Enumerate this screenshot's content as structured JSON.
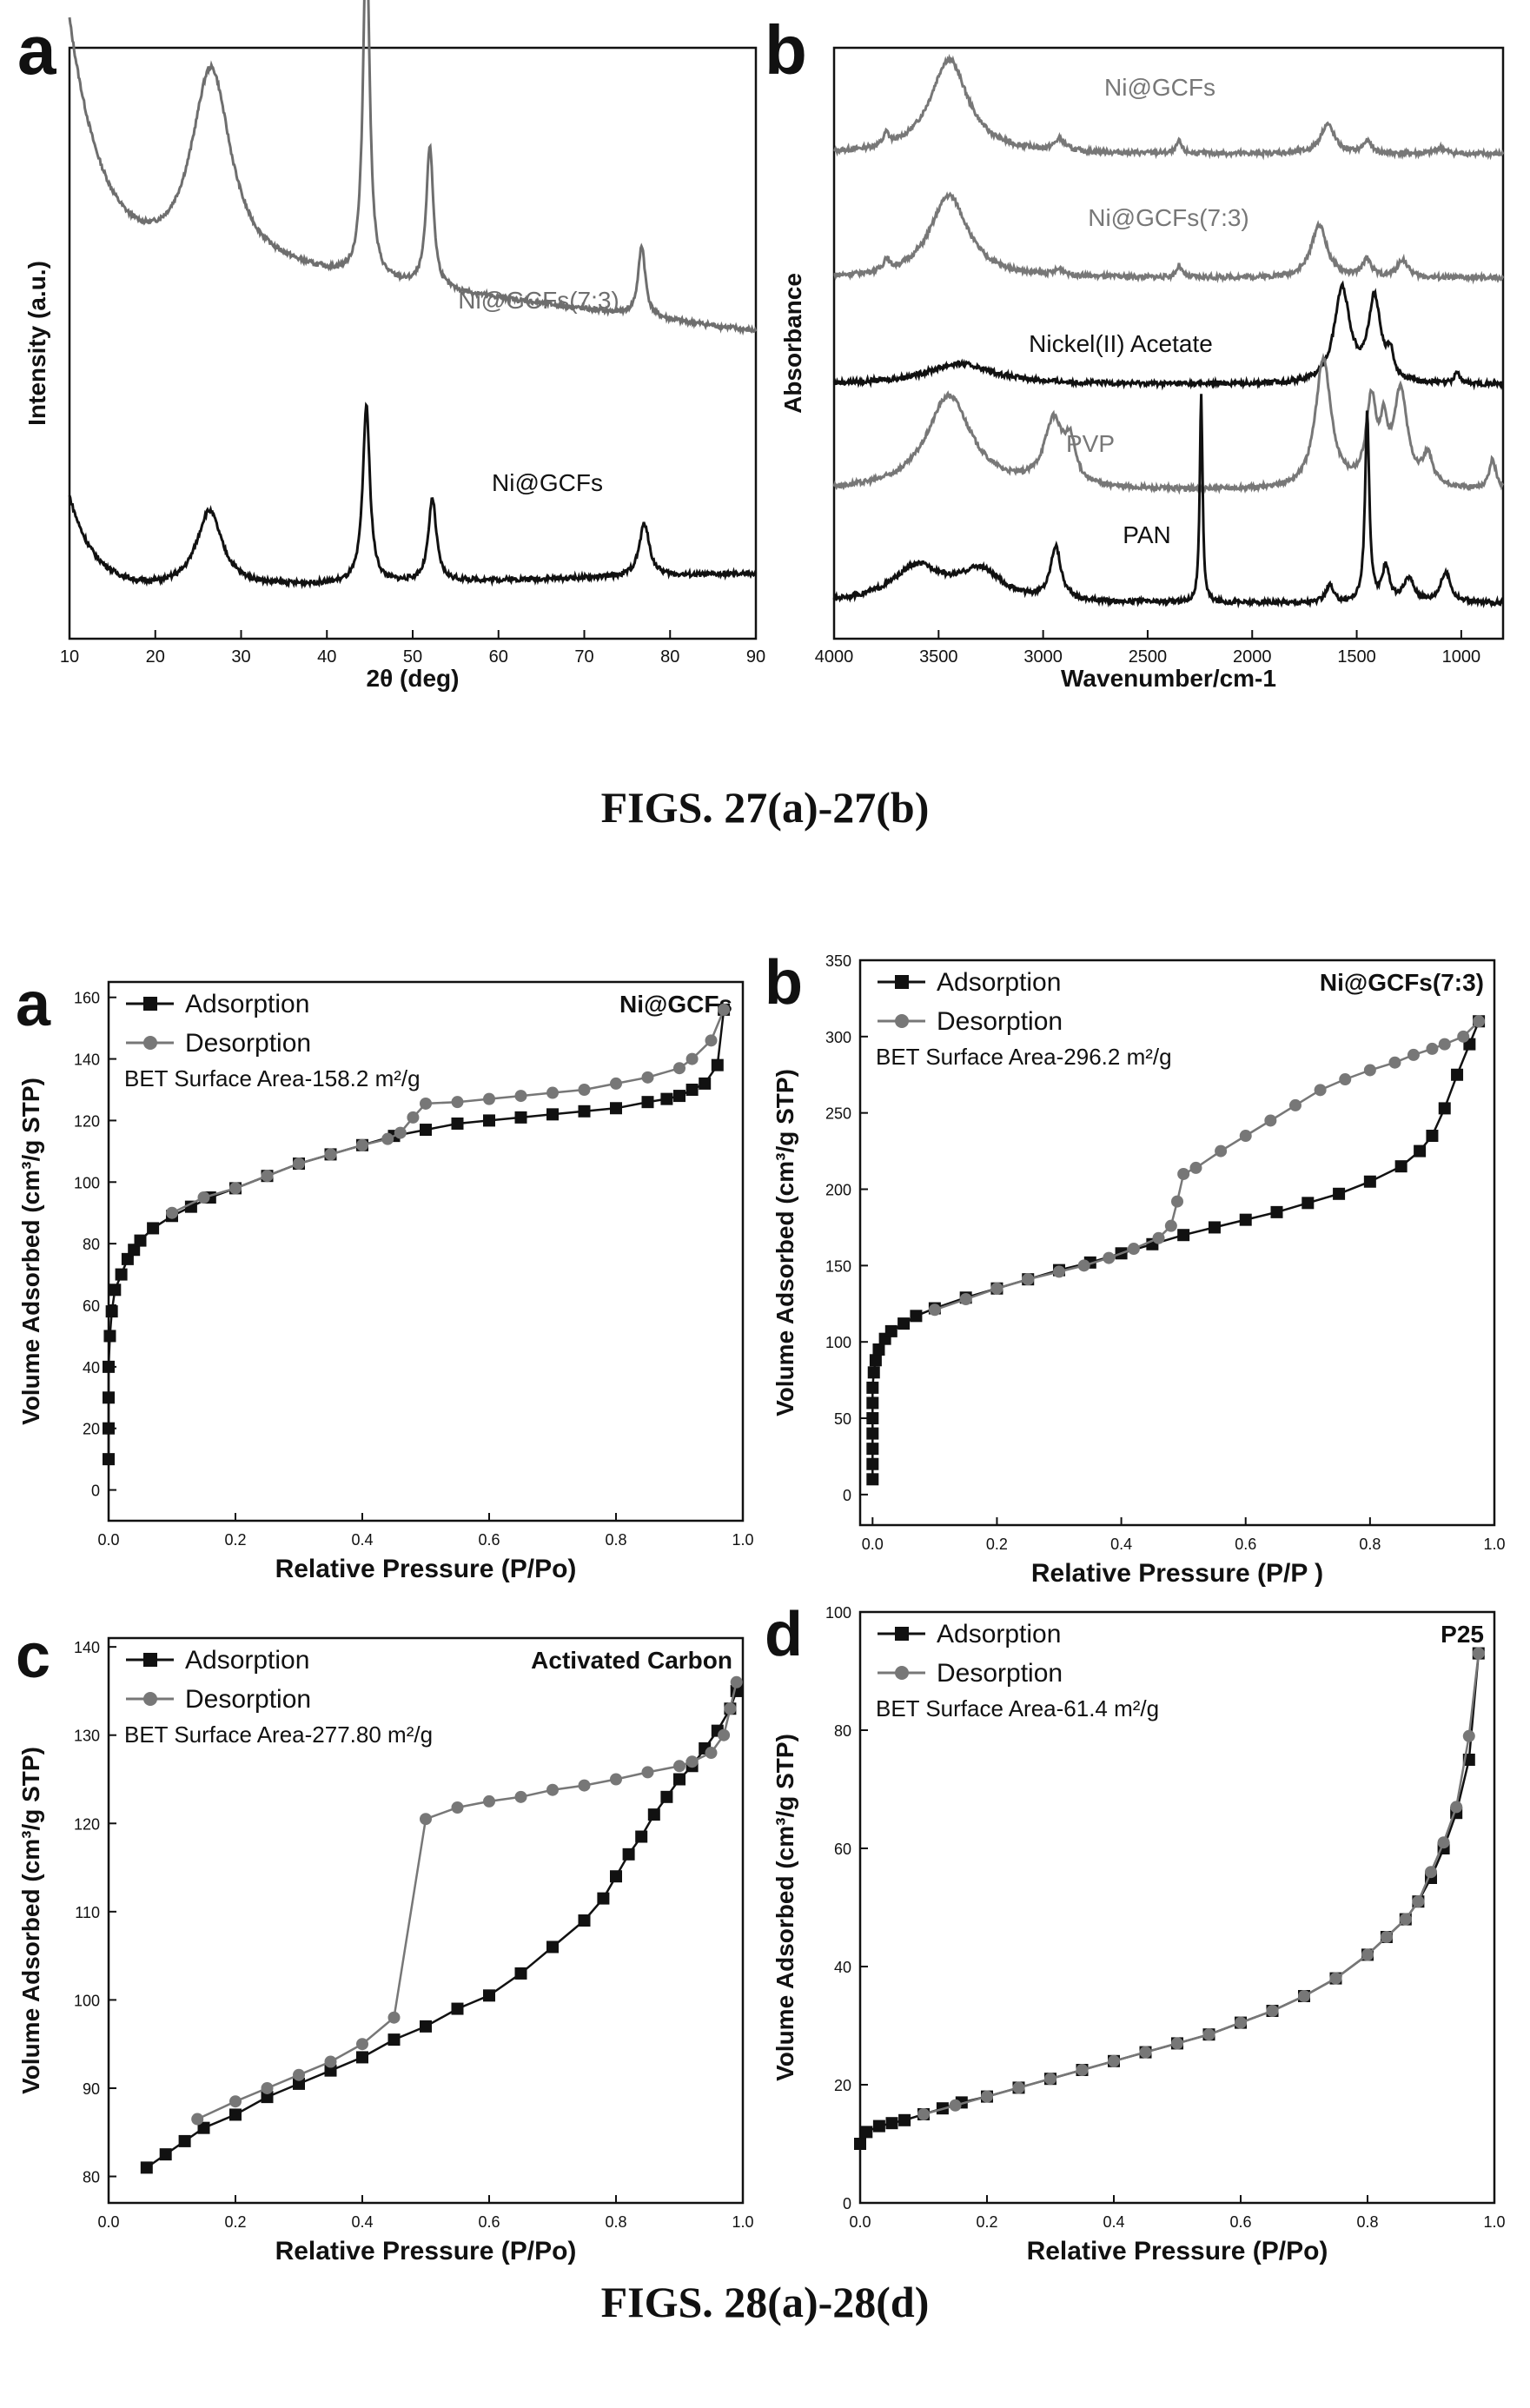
{
  "figure_captions": [
    "FIGS. 27(a)-27(b)",
    "FIGS. 28(a)-28(d)"
  ],
  "chart_data": [
    {
      "id": "fig27a",
      "panel_letter": "a",
      "type": "line",
      "xlabel": "2θ (deg)",
      "ylabel": "Intensity (a.u.)",
      "xlim": [
        10,
        90
      ],
      "xticks": [
        10,
        20,
        30,
        40,
        50,
        60,
        70,
        80,
        90
      ],
      "yticks_visible": false,
      "series": [
        {
          "name": "Ni@GCFs(7:3)",
          "color": "#6e6e6e",
          "offset": 0.52,
          "peaks": [
            [
              10,
              0.42,
              4,
              -1
            ],
            [
              26.5,
              0.34,
              2.8,
              0
            ],
            [
              44.6,
              0.6,
              0.45,
              0
            ],
            [
              52.0,
              0.24,
              0.5,
              0
            ],
            [
              76.7,
              0.12,
              0.5,
              0
            ]
          ],
          "baseline": [
            [
              10,
              0.1
            ],
            [
              35,
              0.1
            ],
            [
              90,
              0.0
            ]
          ]
        },
        {
          "name": "Ni@GCFs",
          "color": "#111111",
          "offset": 0.08,
          "peaks": [
            [
              10,
              0.16,
              3,
              -1
            ],
            [
              26.3,
              0.13,
              1.8,
              0
            ],
            [
              44.6,
              0.3,
              0.5,
              0
            ],
            [
              52.3,
              0.14,
              0.55,
              0
            ],
            [
              77.0,
              0.09,
              0.7,
              0
            ]
          ],
          "baseline": [
            [
              10,
              0.0
            ],
            [
              90,
              0.03
            ]
          ]
        }
      ]
    },
    {
      "id": "fig27b",
      "panel_letter": "b",
      "type": "line",
      "xlabel": "Wavenumber/cm-1",
      "ylabel": "Absorbance",
      "xlim": [
        4000,
        800
      ],
      "xticks": [
        4000,
        3500,
        3000,
        2500,
        2000,
        1500,
        1000
      ],
      "yticks_visible": false,
      "x_reversed": true,
      "series": [
        {
          "name": "Ni@GCFs",
          "color": "#777777",
          "offset": 0.82,
          "peaks": [
            [
              3450,
              0.16,
              110
            ],
            [
              3750,
              0.02,
              15
            ],
            [
              2920,
              0.02,
              30
            ],
            [
              2350,
              0.02,
              15
            ],
            [
              1640,
              0.05,
              40
            ],
            [
              1450,
              0.02,
              25
            ],
            [
              1100,
              0.01,
              30
            ]
          ]
        },
        {
          "name": "Ni@GCFs(7:3)",
          "color": "#777777",
          "offset": 0.61,
          "peaks": [
            [
              3450,
              0.14,
              110
            ],
            [
              3750,
              0.02,
              15
            ],
            [
              2920,
              0.01,
              30
            ],
            [
              2350,
              0.02,
              15
            ],
            [
              1680,
              0.09,
              45
            ],
            [
              1450,
              0.03,
              25
            ],
            [
              1280,
              0.03,
              30
            ]
          ]
        },
        {
          "name": "Nickel(II) Acetate",
          "color": "#111111",
          "offset": 0.43,
          "peaks": [
            [
              3400,
              0.035,
              200
            ],
            [
              1570,
              0.16,
              45
            ],
            [
              1415,
              0.14,
              35
            ],
            [
              1340,
              0.04,
              20
            ],
            [
              1020,
              0.02,
              15
            ]
          ]
        },
        {
          "name": "PVP",
          "color": "#777777",
          "offset": 0.25,
          "peaks": [
            [
              3450,
              0.16,
              130
            ],
            [
              2950,
              0.11,
              55
            ],
            [
              2870,
              0.06,
              30
            ],
            [
              1660,
              0.22,
              45
            ],
            [
              1430,
              0.14,
              30
            ],
            [
              1370,
              0.08,
              20
            ],
            [
              1290,
              0.16,
              40
            ],
            [
              1160,
              0.05,
              30
            ],
            [
              850,
              0.05,
              20
            ]
          ]
        },
        {
          "name": "PAN",
          "color": "#111111",
          "offset": 0.06,
          "peaks": [
            [
              3600,
              0.06,
              150
            ],
            [
              3300,
              0.05,
              120
            ],
            [
              2940,
              0.09,
              30
            ],
            [
              2244,
              0.35,
              8
            ],
            [
              1630,
              0.03,
              20
            ],
            [
              1450,
              0.32,
              12
            ],
            [
              1360,
              0.06,
              20
            ],
            [
              1250,
              0.04,
              30
            ],
            [
              1075,
              0.05,
              30
            ]
          ]
        }
      ]
    },
    {
      "id": "fig28a",
      "panel_letter": "a",
      "type": "line",
      "title": "Ni@GCFs",
      "annotation": "BET Surface Area-158.2 m²/g",
      "xlabel": "Relative Pressure (P/Po)",
      "ylabel": "Volume Adsorbed (cm³/g STP)",
      "xlim": [
        0,
        1.0
      ],
      "ylim": [
        -10,
        165
      ],
      "yticks": [
        0,
        20,
        40,
        60,
        80,
        100,
        120,
        140,
        160
      ],
      "legend_location": "top-left",
      "series": [
        {
          "name": "Adsorption",
          "color": "#111111",
          "marker": "square",
          "x": [
            0.0,
            0.0,
            0.0,
            0.0,
            0.002,
            0.005,
            0.01,
            0.02,
            0.03,
            0.04,
            0.05,
            0.07,
            0.1,
            0.13,
            0.16,
            0.2,
            0.25,
            0.3,
            0.35,
            0.4,
            0.45,
            0.5,
            0.55,
            0.6,
            0.65,
            0.7,
            0.75,
            0.8,
            0.85,
            0.88,
            0.9,
            0.92,
            0.94,
            0.96,
            0.97
          ],
          "y": [
            10,
            20,
            30,
            40,
            50,
            58,
            65,
            70,
            75,
            78,
            81,
            85,
            89,
            92,
            95,
            98,
            102,
            106,
            109,
            112,
            115,
            117,
            119,
            120,
            121,
            122,
            123,
            124,
            126,
            127,
            128,
            130,
            132,
            138,
            156
          ]
        },
        {
          "name": "Desorption",
          "color": "#777777",
          "marker": "circle",
          "x": [
            0.97,
            0.95,
            0.92,
            0.9,
            0.85,
            0.8,
            0.75,
            0.7,
            0.65,
            0.6,
            0.55,
            0.5,
            0.48,
            0.46,
            0.44,
            0.4,
            0.35,
            0.3,
            0.25,
            0.2,
            0.15,
            0.1
          ],
          "y": [
            156,
            146,
            140,
            137,
            134,
            132,
            130,
            129,
            128,
            127,
            126,
            125.5,
            121,
            116,
            114,
            112,
            109,
            106,
            102,
            98,
            95,
            90
          ]
        }
      ]
    },
    {
      "id": "fig28b",
      "panel_letter": "b",
      "type": "line",
      "title": "Ni@GCFs(7:3)",
      "annotation": "BET Surface Area-296.2 m²/g",
      "xlabel": "Relative Pressure (P/P )",
      "ylabel": "Volume Adsorbed (cm³/g STP)",
      "xlim": [
        -0.02,
        1.0
      ],
      "ylim": [
        -20,
        350
      ],
      "yticks": [
        0,
        50,
        100,
        150,
        200,
        250,
        300,
        350
      ],
      "legend_location": "top-left",
      "series": [
        {
          "name": "Adsorption",
          "color": "#111111",
          "marker": "square",
          "x": [
            0.0,
            0.0,
            0.0,
            0.0,
            0.0,
            0.0,
            0.0,
            0.002,
            0.005,
            0.01,
            0.02,
            0.03,
            0.05,
            0.07,
            0.1,
            0.15,
            0.2,
            0.25,
            0.3,
            0.35,
            0.4,
            0.45,
            0.5,
            0.55,
            0.6,
            0.65,
            0.7,
            0.75,
            0.8,
            0.85,
            0.88,
            0.9,
            0.92,
            0.94,
            0.96,
            0.975
          ],
          "y": [
            10,
            20,
            30,
            40,
            50,
            60,
            70,
            80,
            88,
            95,
            102,
            107,
            112,
            117,
            122,
            129,
            135,
            141,
            147,
            152,
            158,
            164,
            170,
            175,
            180,
            185,
            191,
            197,
            205,
            215,
            225,
            235,
            253,
            275,
            295,
            310
          ]
        },
        {
          "name": "Desorption",
          "color": "#777777",
          "marker": "circle",
          "x": [
            0.975,
            0.95,
            0.92,
            0.9,
            0.87,
            0.84,
            0.8,
            0.76,
            0.72,
            0.68,
            0.64,
            0.6,
            0.56,
            0.52,
            0.5,
            0.49,
            0.48,
            0.46,
            0.42,
            0.38,
            0.34,
            0.3,
            0.25,
            0.2,
            0.15,
            0.1
          ],
          "y": [
            310,
            300,
            295,
            292,
            288,
            283,
            278,
            272,
            265,
            255,
            245,
            235,
            225,
            214,
            210,
            192,
            176,
            168,
            161,
            155,
            150,
            146,
            141,
            135,
            128,
            121
          ]
        }
      ]
    },
    {
      "id": "fig28c",
      "panel_letter": "c",
      "type": "line",
      "title": "Activated Carbon",
      "annotation": "BET Surface Area-277.80 m²/g",
      "xlabel": "Relative Pressure (P/Po)",
      "ylabel": "Volume Adsorbed (cm³/g STP)",
      "xlim": [
        0,
        1.0
      ],
      "ylim": [
        77,
        141
      ],
      "yticks": [
        80,
        90,
        100,
        110,
        120,
        130,
        140
      ],
      "xticks": [
        0.0,
        0.2,
        0.4,
        0.6,
        0.8,
        1.0
      ],
      "legend_location": "top-left",
      "series": [
        {
          "name": "Adsorption",
          "color": "#111111",
          "marker": "square",
          "x": [
            0.06,
            0.09,
            0.12,
            0.15,
            0.2,
            0.25,
            0.3,
            0.35,
            0.4,
            0.45,
            0.5,
            0.55,
            0.6,
            0.65,
            0.7,
            0.75,
            0.78,
            0.8,
            0.82,
            0.84,
            0.86,
            0.88,
            0.9,
            0.92,
            0.94,
            0.96,
            0.98,
            0.99
          ],
          "y": [
            81,
            82.5,
            84,
            85.5,
            87,
            89,
            90.5,
            92,
            93.5,
            95.5,
            97,
            99,
            100.5,
            103,
            106,
            109,
            111.5,
            114,
            116.5,
            118.5,
            121,
            123,
            125,
            126.5,
            128.5,
            130.5,
            133,
            135
          ]
        },
        {
          "name": "Desorption",
          "color": "#777777",
          "marker": "circle",
          "x": [
            0.99,
            0.98,
            0.97,
            0.95,
            0.92,
            0.9,
            0.85,
            0.8,
            0.75,
            0.7,
            0.65,
            0.6,
            0.55,
            0.5,
            0.45,
            0.4,
            0.35,
            0.3,
            0.25,
            0.2,
            0.14
          ],
          "y": [
            136,
            133,
            130,
            128,
            127,
            126.5,
            125.8,
            125,
            124.3,
            123.8,
            123,
            122.5,
            121.8,
            120.5,
            98,
            95,
            93,
            91.5,
            90,
            88.5,
            86.5
          ]
        }
      ]
    },
    {
      "id": "fig28d",
      "panel_letter": "d",
      "type": "line",
      "title": "P25",
      "annotation": "BET Surface Area-61.4 m²/g",
      "xlabel": "Relative Pressure (P/Po)",
      "ylabel": "Volume Adsorbed (cm³/g STP)",
      "xlim": [
        0,
        1.0
      ],
      "ylim": [
        0,
        100
      ],
      "yticks": [
        0,
        20,
        40,
        60,
        80,
        100
      ],
      "xticks": [
        0.0,
        0.2,
        0.4,
        0.6,
        0.8,
        1.0
      ],
      "legend_location": "top-left",
      "series": [
        {
          "name": "Adsorption",
          "color": "#111111",
          "marker": "square",
          "x": [
            0.0,
            0.01,
            0.03,
            0.05,
            0.07,
            0.1,
            0.13,
            0.16,
            0.2,
            0.25,
            0.3,
            0.35,
            0.4,
            0.45,
            0.5,
            0.55,
            0.6,
            0.65,
            0.7,
            0.75,
            0.8,
            0.83,
            0.86,
            0.88,
            0.9,
            0.92,
            0.94,
            0.96,
            0.975
          ],
          "y": [
            10,
            12,
            13,
            13.5,
            14,
            15,
            16,
            17,
            18,
            19.5,
            21,
            22.5,
            24,
            25.5,
            27,
            28.5,
            30.5,
            32.5,
            35,
            38,
            42,
            45,
            48,
            51,
            55,
            60,
            66,
            75,
            93
          ]
        },
        {
          "name": "Desorption",
          "color": "#777777",
          "marker": "circle",
          "x": [
            0.975,
            0.96,
            0.94,
            0.92,
            0.9,
            0.88,
            0.86,
            0.83,
            0.8,
            0.75,
            0.7,
            0.65,
            0.6,
            0.55,
            0.5,
            0.45,
            0.4,
            0.35,
            0.3,
            0.25,
            0.2,
            0.15,
            0.1
          ],
          "y": [
            93,
            79,
            67,
            61,
            56,
            51,
            48,
            45,
            42,
            38,
            35,
            32.5,
            30.5,
            28.5,
            27,
            25.5,
            24,
            22.5,
            21,
            19.5,
            18,
            16.5,
            15
          ]
        }
      ]
    }
  ]
}
